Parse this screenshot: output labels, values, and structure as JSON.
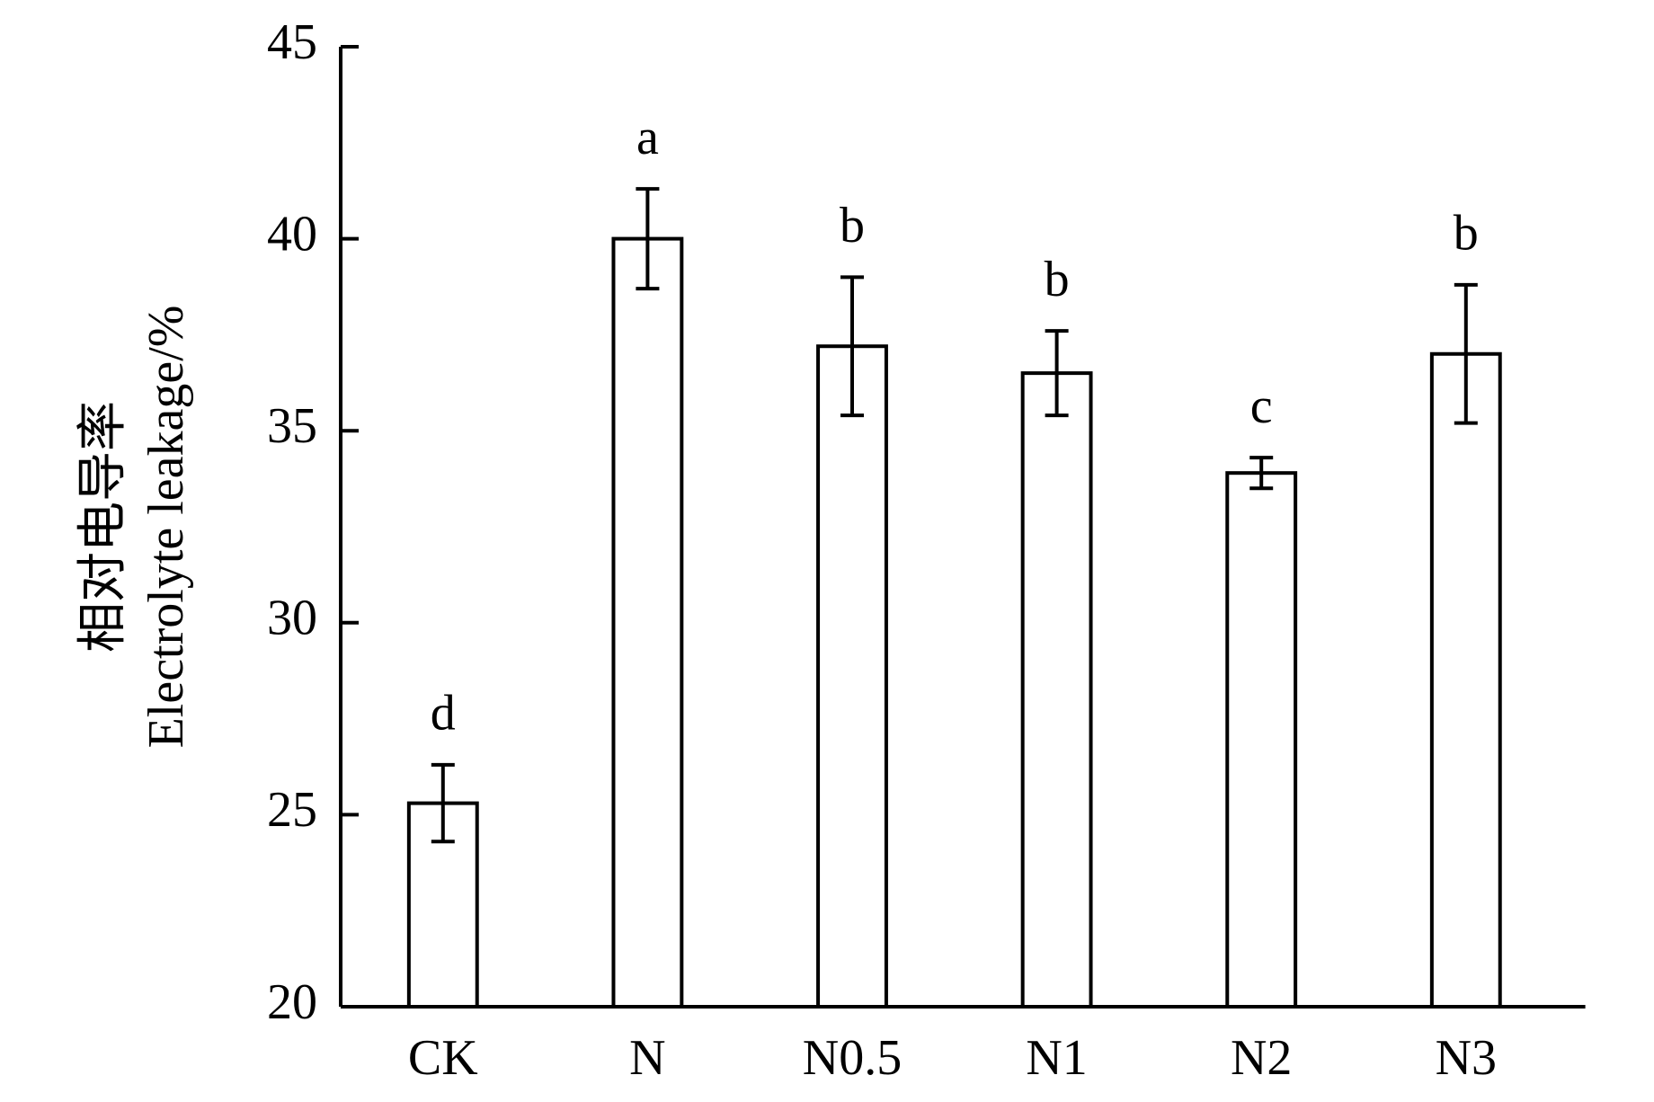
{
  "chart_data": {
    "type": "bar",
    "y_label": [
      "相对电导率",
      "Electrolyte leakage/%"
    ],
    "categories": [
      "CK",
      "N",
      "N0.5",
      "N1",
      "N2",
      "N3"
    ],
    "values": [
      25.3,
      40.0,
      37.2,
      36.5,
      33.9,
      37.0
    ],
    "errors": [
      1.0,
      1.3,
      1.8,
      1.1,
      0.4,
      1.8
    ],
    "annotations": [
      "d",
      "a",
      "b",
      "b",
      "c",
      "b"
    ],
    "color": "#ffffff",
    "edge_color": "#000000",
    "ylim": [
      20,
      45
    ],
    "yticks": [
      20,
      25,
      30,
      35,
      40,
      45
    ],
    "grid": false
  }
}
